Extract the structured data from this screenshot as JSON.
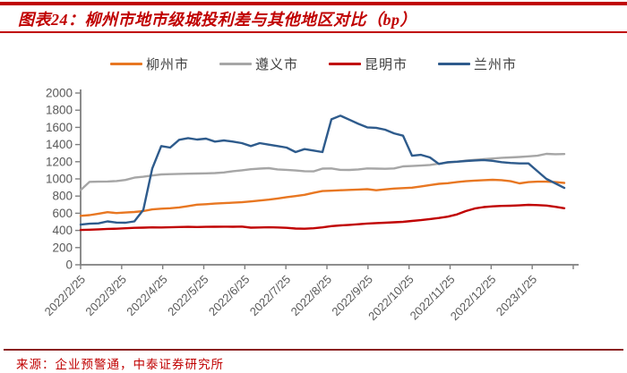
{
  "header": {
    "title": "图表24：柳州市地市级城投利差与其他地区对比（bp）"
  },
  "source": {
    "text": "来源：企业预警通，中泰证券研究所"
  },
  "colors": {
    "accent_red": "#C00000",
    "axis": "#7F7F7F",
    "tick_label": "#595959",
    "legend_text": "#404040",
    "bottom_rule": "#8B2222"
  },
  "chart_data": {
    "type": "line",
    "title": "柳州市地市级城投利差与其他地区对比（bp）",
    "ylabel": "",
    "xlabel": "",
    "ylim": [
      0,
      2000
    ],
    "y_ticks": [
      0,
      200,
      400,
      600,
      800,
      1000,
      1200,
      1400,
      1600,
      1800,
      2000
    ],
    "grid": false,
    "legend_position": "top",
    "x_start": "2022/2/25",
    "x_end": "2023/2/17",
    "n_points": 55,
    "x_tick_labels": [
      "2022/2/25",
      "2022/3/25",
      "2022/4/25",
      "2022/5/25",
      "2022/6/25",
      "2022/7/25",
      "2022/8/25",
      "2022/9/25",
      "2022/10/25",
      "2022/11/25",
      "2022/12/25",
      "2023/1/25"
    ],
    "series": [
      {
        "name": "柳州市",
        "color": "#E87722",
        "values": [
          570,
          578,
          595,
          612,
          602,
          608,
          615,
          625,
          645,
          653,
          658,
          668,
          683,
          700,
          705,
          713,
          718,
          723,
          728,
          738,
          748,
          758,
          772,
          788,
          800,
          815,
          838,
          858,
          862,
          868,
          872,
          876,
          880,
          868,
          878,
          888,
          893,
          898,
          913,
          928,
          943,
          950,
          963,
          973,
          980,
          985,
          990,
          985,
          973,
          948,
          962,
          968,
          968,
          963,
          953
        ]
      },
      {
        "name": "遵义市",
        "color": "#A6A6A6",
        "values": [
          870,
          966,
          968,
          970,
          975,
          988,
          1015,
          1025,
          1040,
          1052,
          1055,
          1058,
          1060,
          1062,
          1065,
          1068,
          1075,
          1090,
          1100,
          1112,
          1120,
          1125,
          1110,
          1105,
          1098,
          1090,
          1087,
          1120,
          1122,
          1105,
          1104,
          1110,
          1122,
          1120,
          1118,
          1122,
          1146,
          1150,
          1155,
          1162,
          1178,
          1190,
          1200,
          1212,
          1222,
          1230,
          1238,
          1246,
          1250,
          1255,
          1262,
          1270,
          1292,
          1288,
          1290
        ]
      },
      {
        "name": "昆明市",
        "color": "#C00000",
        "values": [
          405,
          408,
          412,
          418,
          420,
          425,
          430,
          432,
          435,
          434,
          436,
          440,
          442,
          440,
          442,
          443,
          444,
          443,
          445,
          432,
          434,
          436,
          434,
          430,
          422,
          420,
          425,
          435,
          450,
          458,
          465,
          472,
          480,
          485,
          490,
          495,
          500,
          510,
          520,
          532,
          545,
          560,
          585,
          625,
          655,
          672,
          680,
          685,
          688,
          692,
          698,
          695,
          690,
          675,
          658
        ]
      },
      {
        "name": "兰州市",
        "color": "#2E5B8C",
        "values": [
          468,
          478,
          482,
          505,
          492,
          490,
          505,
          640,
          1122,
          1382,
          1365,
          1455,
          1475,
          1458,
          1469,
          1434,
          1448,
          1434,
          1417,
          1382,
          1417,
          1399,
          1382,
          1365,
          1313,
          1347,
          1330,
          1313,
          1694,
          1736,
          1690,
          1642,
          1600,
          1595,
          1573,
          1530,
          1503,
          1270,
          1280,
          1250,
          1174,
          1195,
          1200,
          1208,
          1215,
          1220,
          1210,
          1195,
          1185,
          1180,
          1180,
          1090,
          1000,
          948,
          895
        ]
      }
    ]
  }
}
